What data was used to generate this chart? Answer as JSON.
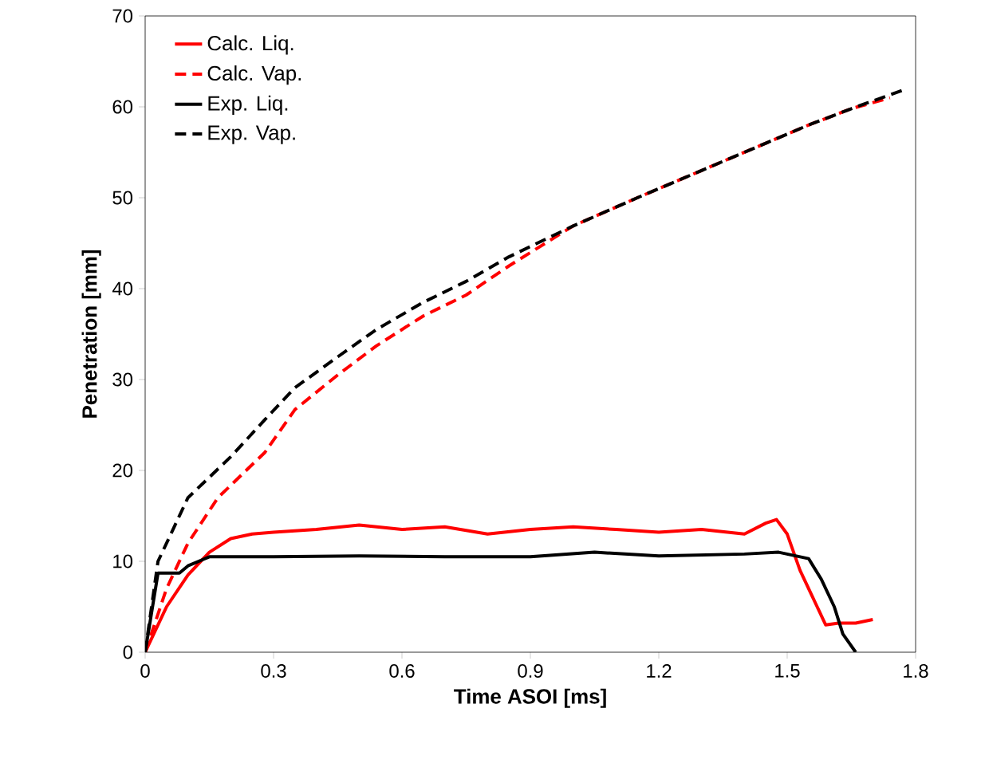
{
  "chart_data": {
    "type": "line",
    "xlabel": "Time ASOI [ms]",
    "ylabel": "Penetration [mm]",
    "xlim": [
      0,
      1.8
    ],
    "xticks": [
      0,
      0.3,
      0.6,
      0.9,
      1.2,
      1.5,
      1.8
    ],
    "ylim": [
      0,
      70
    ],
    "yticks": [
      0,
      10,
      20,
      30,
      40,
      50,
      60,
      70
    ],
    "grid": false,
    "legend": "top left",
    "series": [
      {
        "name": "Calc. Liq.",
        "color": "#ff0000",
        "line_style": "solid",
        "x": [
          0,
          0.05,
          0.1,
          0.15,
          0.2,
          0.25,
          0.3,
          0.4,
          0.5,
          0.6,
          0.7,
          0.8,
          0.9,
          1.0,
          1.1,
          1.2,
          1.3,
          1.4,
          1.45,
          1.475,
          1.5,
          1.53,
          1.57,
          1.59,
          1.62,
          1.66,
          1.7
        ],
        "values": [
          0,
          5,
          8.5,
          11,
          12.5,
          13,
          13.2,
          13.5,
          14,
          13.5,
          13.8,
          13,
          13.5,
          13.8,
          13.5,
          13.2,
          13.5,
          13,
          14.2,
          14.6,
          13,
          9,
          5,
          3,
          3.2,
          3.2,
          3.6
        ]
      },
      {
        "name": "Calc. Vap.",
        "color": "#ff0000",
        "line_style": "dashed",
        "x": [
          0,
          0.05,
          0.1,
          0.17,
          0.28,
          0.35,
          0.45,
          0.54,
          0.65,
          0.75,
          0.85,
          1.0,
          1.15,
          1.3,
          1.45,
          1.55,
          1.65,
          1.74
        ],
        "values": [
          0,
          7,
          12,
          17,
          22,
          26.7,
          30.5,
          33.7,
          37,
          39.3,
          42.5,
          46.9,
          50,
          53,
          56,
          58,
          59.8,
          61
        ]
      },
      {
        "name": "Exp. Liq.",
        "color": "#000000",
        "line_style": "solid",
        "x": [
          0,
          0.03,
          0.08,
          0.1,
          0.15,
          0.3,
          0.5,
          0.7,
          0.9,
          1.05,
          1.2,
          1.4,
          1.48,
          1.55,
          1.58,
          1.61,
          1.63,
          1.66
        ],
        "values": [
          0,
          8.7,
          8.7,
          9.5,
          10.5,
          10.5,
          10.6,
          10.5,
          10.5,
          11,
          10.6,
          10.8,
          11,
          10.3,
          8,
          5,
          2,
          0
        ]
      },
      {
        "name": "Exp. Vap.",
        "color": "#000000",
        "line_style": "dashed",
        "x": [
          0,
          0.03,
          0.1,
          0.2,
          0.28,
          0.35,
          0.45,
          0.54,
          0.65,
          0.75,
          0.85,
          1.0,
          1.15,
          1.3,
          1.45,
          1.55,
          1.65,
          1.78
        ],
        "values": [
          0,
          10,
          17,
          21.5,
          25.6,
          29.1,
          32.5,
          35.5,
          38.5,
          40.8,
          43.5,
          46.9,
          50,
          53,
          56,
          58,
          59.8,
          62
        ]
      }
    ]
  }
}
